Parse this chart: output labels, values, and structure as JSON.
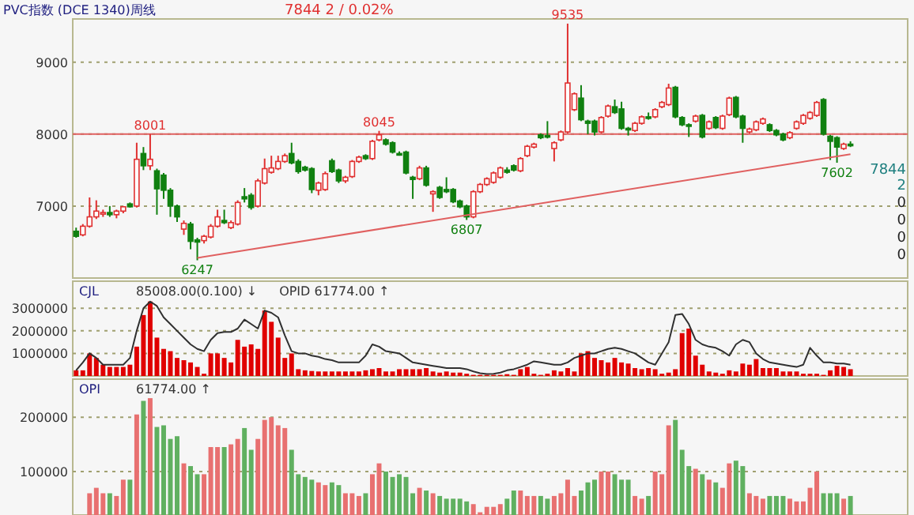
{
  "chart_data": [
    {
      "type": "candlestick",
      "title": "PVC指数 (DCE 1340)周线",
      "subtitle": "7844  2 / 0.02%",
      "tick_labels": "y",
      "grid": "y",
      "ylim": [
        6000,
        9600
      ],
      "yticks": [
        7000,
        8000,
        9000
      ],
      "categories": [
        null,
        null,
        null,
        null,
        null,
        null,
        null,
        null,
        null,
        null,
        null,
        null,
        null,
        null,
        null,
        null,
        null,
        null,
        null,
        null,
        null,
        null,
        null,
        null,
        null,
        null,
        null,
        null,
        null,
        null,
        null,
        null,
        null,
        null,
        null,
        null,
        null,
        null,
        null,
        null,
        null,
        null,
        null,
        null,
        null,
        null,
        null,
        null,
        null,
        null,
        null,
        null,
        null,
        null,
        null,
        null,
        null,
        null,
        null,
        null,
        null,
        null,
        null,
        null,
        null,
        null,
        null,
        null,
        null,
        null,
        null,
        null,
        null,
        null,
        null,
        null,
        null,
        null,
        null,
        null,
        null,
        null,
        null,
        null,
        null,
        null,
        null,
        null,
        null,
        null,
        null,
        null,
        null,
        null,
        null,
        null,
        null,
        null,
        null,
        null,
        null,
        null,
        null,
        null,
        null,
        null,
        null,
        null,
        null,
        null,
        null,
        null,
        null,
        null,
        null,
        null
      ],
      "ohlc": [
        [
          6650,
          6700,
          6560,
          6580
        ],
        [
          6600,
          6750,
          6580,
          6720
        ],
        [
          6720,
          7120,
          6700,
          6850
        ],
        [
          6850,
          7080,
          6820,
          6930
        ],
        [
          6900,
          6950,
          6850,
          6910
        ],
        [
          6910,
          7000,
          6850,
          6880
        ],
        [
          6880,
          6950,
          6830,
          6930
        ],
        [
          6930,
          7000,
          6900,
          6990
        ],
        [
          7030,
          7050,
          6980,
          6990
        ],
        [
          7000,
          7880,
          6980,
          7650
        ],
        [
          7730,
          7820,
          7500,
          7560
        ],
        [
          7560,
          8001,
          7500,
          7650
        ],
        [
          7490,
          7520,
          6880,
          7240
        ],
        [
          7430,
          7460,
          7100,
          7220
        ],
        [
          7220,
          7250,
          6850,
          7000
        ],
        [
          7000,
          7020,
          6780,
          6850
        ],
        [
          6680,
          6800,
          6600,
          6760
        ],
        [
          6750,
          6780,
          6400,
          6510
        ],
        [
          6530,
          6560,
          6247,
          6500
        ],
        [
          6520,
          6600,
          6480,
          6580
        ],
        [
          6570,
          6750,
          6550,
          6720
        ],
        [
          6720,
          6950,
          6700,
          6850
        ],
        [
          6800,
          6950,
          6750,
          6770
        ],
        [
          6700,
          6800,
          6680,
          6770
        ],
        [
          6750,
          7080,
          6730,
          7050
        ],
        [
          7130,
          7250,
          7050,
          7100
        ],
        [
          7150,
          7180,
          6950,
          6980
        ],
        [
          7000,
          7380,
          6980,
          7350
        ],
        [
          7320,
          7660,
          7300,
          7520
        ],
        [
          7470,
          7700,
          7450,
          7530
        ],
        [
          7520,
          7700,
          7500,
          7620
        ],
        [
          7620,
          7730,
          7600,
          7700
        ],
        [
          7730,
          7880,
          7580,
          7600
        ],
        [
          7620,
          7650,
          7450,
          7480
        ],
        [
          7540,
          7560,
          7480,
          7500
        ],
        [
          7520,
          7540,
          7180,
          7230
        ],
        [
          7220,
          7340,
          7150,
          7320
        ],
        [
          7230,
          7480,
          7210,
          7450
        ],
        [
          7630,
          7660,
          7460,
          7480
        ],
        [
          7500,
          7520,
          7320,
          7350
        ],
        [
          7350,
          7420,
          7320,
          7400
        ],
        [
          7410,
          7640,
          7390,
          7620
        ],
        [
          7620,
          7700,
          7600,
          7680
        ],
        [
          7700,
          7720,
          7640,
          7660
        ],
        [
          7660,
          7920,
          7640,
          7900
        ],
        [
          7920,
          8045,
          7900,
          7990
        ],
        [
          7920,
          7940,
          7840,
          7860
        ],
        [
          7880,
          7900,
          7730,
          7750
        ],
        [
          7730,
          7760,
          7700,
          7720
        ],
        [
          7750,
          7770,
          7440,
          7460
        ],
        [
          7400,
          7420,
          7100,
          7370
        ],
        [
          7380,
          7560,
          7360,
          7530
        ],
        [
          7530,
          7560,
          7270,
          7290
        ],
        [
          7170,
          7220,
          6920,
          7200
        ],
        [
          7260,
          7280,
          7100,
          7120
        ],
        [
          7230,
          7400,
          7180,
          7200
        ],
        [
          7230,
          7250,
          7040,
          7060
        ],
        [
          7070,
          7090,
          6970,
          6990
        ],
        [
          7000,
          7020,
          6807,
          6850
        ],
        [
          6850,
          7220,
          6830,
          7200
        ],
        [
          7200,
          7320,
          7180,
          7300
        ],
        [
          7300,
          7400,
          7280,
          7380
        ],
        [
          7330,
          7480,
          7310,
          7460
        ],
        [
          7400,
          7550,
          7380,
          7530
        ],
        [
          7500,
          7540,
          7450,
          7470
        ],
        [
          7560,
          7580,
          7480,
          7500
        ],
        [
          7490,
          7680,
          7470,
          7660
        ],
        [
          7700,
          7850,
          7680,
          7830
        ],
        [
          7820,
          7880,
          7800,
          7860
        ],
        [
          7990,
          8010,
          7930,
          7950
        ],
        [
          7980,
          8180,
          7940,
          7960
        ],
        [
          7800,
          7900,
          7620,
          7880
        ],
        [
          7920,
          8050,
          7900,
          8030
        ],
        [
          8030,
          9535,
          8010,
          8710
        ],
        [
          8340,
          8580,
          8320,
          8560
        ],
        [
          8500,
          8680,
          8180,
          8200
        ],
        [
          8180,
          8200,
          8000,
          8150
        ],
        [
          8180,
          8200,
          7980,
          8030
        ],
        [
          8030,
          8250,
          8010,
          8230
        ],
        [
          8250,
          8410,
          8230,
          8390
        ],
        [
          8380,
          8480,
          8280,
          8300
        ],
        [
          8350,
          8450,
          8060,
          8080
        ],
        [
          8080,
          8100,
          7980,
          8060
        ],
        [
          8050,
          8170,
          8030,
          8150
        ],
        [
          8150,
          8260,
          8130,
          8240
        ],
        [
          8240,
          8300,
          8200,
          8220
        ],
        [
          8240,
          8360,
          8220,
          8340
        ],
        [
          8380,
          8460,
          8360,
          8440
        ],
        [
          8410,
          8700,
          8390,
          8640
        ],
        [
          8650,
          8670,
          8220,
          8240
        ],
        [
          8230,
          8250,
          8110,
          8130
        ],
        [
          8130,
          8150,
          7960,
          8110
        ],
        [
          8180,
          8270,
          8160,
          8250
        ],
        [
          8260,
          8280,
          7940,
          7960
        ],
        [
          8080,
          8190,
          8060,
          8170
        ],
        [
          8230,
          8250,
          8070,
          8090
        ],
        [
          8080,
          8270,
          8060,
          8250
        ],
        [
          8270,
          8520,
          8250,
          8500
        ],
        [
          8510,
          8530,
          8220,
          8240
        ],
        [
          8250,
          8270,
          7880,
          8080
        ],
        [
          8030,
          8090,
          8010,
          8070
        ],
        [
          8060,
          8190,
          8040,
          8170
        ],
        [
          8150,
          8230,
          8130,
          8210
        ],
        [
          8130,
          8150,
          8030,
          8050
        ],
        [
          8050,
          8070,
          7970,
          7990
        ],
        [
          8000,
          8020,
          7900,
          7920
        ],
        [
          7950,
          8040,
          7930,
          8020
        ],
        [
          8080,
          8190,
          8060,
          8170
        ],
        [
          8150,
          8280,
          8130,
          8260
        ],
        [
          8220,
          8320,
          8200,
          8300
        ],
        [
          8260,
          8460,
          8240,
          8440
        ],
        [
          8480,
          8500,
          7980,
          8000
        ],
        [
          7970,
          7990,
          7640,
          7900
        ],
        [
          7950,
          7970,
          7602,
          7820
        ],
        [
          7800,
          7880,
          7780,
          7860
        ],
        [
          7860,
          7900,
          7820,
          7844
        ]
      ],
      "series": [
        {
          "type": "line",
          "values": [
            null,
            null,
            null,
            null,
            null,
            null,
            null,
            null,
            null,
            null,
            null,
            null,
            null,
            null,
            null,
            null,
            null,
            null,
            6280,
            null,
            null,
            null,
            null,
            null,
            null,
            null,
            null,
            null,
            null,
            null,
            null,
            null,
            null,
            null,
            null,
            null,
            null,
            null,
            null,
            null,
            null,
            null,
            null,
            null,
            null,
            null,
            null,
            null,
            null,
            null,
            null,
            null,
            null,
            null,
            null,
            null,
            null,
            null,
            null,
            null,
            null,
            null,
            null,
            null,
            null,
            null,
            null,
            null,
            null,
            null,
            null,
            null,
            null,
            null,
            null,
            null,
            null,
            null,
            null,
            null,
            null,
            null,
            null,
            null,
            null,
            null,
            null,
            null,
            null,
            null,
            null,
            null,
            null,
            null,
            null,
            null,
            null,
            null,
            null,
            null,
            null,
            null,
            null,
            null,
            null,
            null,
            null,
            null,
            null,
            null,
            null,
            null,
            null,
            null,
            null,
            7720
          ],
          "color": "#e06060"
        }
      ],
      "ref_lines": [
        {
          "axis": "y",
          "value": 8000,
          "color": "#e06060"
        }
      ],
      "annotations": [
        {
          "text": "8001",
          "y": 8001
        },
        {
          "text": "8045",
          "y": 8045
        },
        {
          "text": "9535",
          "y": 9535
        },
        {
          "text": "6247",
          "y": 6247
        },
        {
          "text": "6807",
          "y": 6807
        },
        {
          "text": "7602",
          "y": 7602
        },
        "7844",
        "2",
        "0",
        "0",
        "0",
        "0"
      ]
    },
    {
      "type": "bar",
      "title": "CJL",
      "tick_labels": "y",
      "grid": "y",
      "ylim": [
        0,
        4200000
      ],
      "yticks": [
        1000000,
        2000000,
        3000000
      ],
      "categories": [
        null,
        null,
        null,
        null,
        null,
        null,
        null,
        null,
        null,
        null,
        null,
        null,
        null,
        null,
        null,
        null,
        null,
        null,
        null,
        null,
        null,
        null,
        null,
        null,
        null,
        null,
        null,
        null,
        null,
        null,
        null,
        null,
        null,
        null,
        null,
        null,
        null,
        null,
        null,
        null,
        null,
        null,
        null,
        null,
        null,
        null,
        null,
        null,
        null,
        null,
        null,
        null,
        null,
        null,
        null,
        null,
        null,
        null,
        null,
        null,
        null,
        null,
        null,
        null,
        null,
        null,
        null,
        null,
        null,
        null,
        null,
        null,
        null,
        null,
        null,
        null,
        null,
        null,
        null,
        null,
        null,
        null,
        null,
        null,
        null,
        null,
        null,
        null,
        null,
        null,
        null,
        null,
        null,
        null,
        null,
        null,
        null,
        null,
        null,
        null,
        null,
        null,
        null,
        null,
        null,
        null,
        null,
        null,
        null,
        null,
        null,
        null,
        null,
        null,
        null,
        null
      ],
      "annotations": [
        "85008.00(0.100) ↓",
        "OPID  61774.00 ↑"
      ],
      "series": [
        {
          "type": "bar",
          "color": "#e00000",
          "values": [
            250000,
            250000,
            1000000,
            800000,
            500000,
            400000,
            400000,
            400000,
            500000,
            1300000,
            2700000,
            3300000,
            1700000,
            1200000,
            1100000,
            800000,
            700000,
            600000,
            400000,
            100000,
            1000000,
            1000000,
            800000,
            600000,
            1600000,
            1300000,
            1400000,
            1200000,
            2900000,
            2400000,
            1700000,
            800000,
            1000000,
            300000,
            250000,
            220000,
            200000,
            200000,
            200000,
            200000,
            200000,
            200000,
            200000,
            250000,
            300000,
            350000,
            200000,
            200000,
            300000,
            300000,
            300000,
            300000,
            350000,
            200000,
            150000,
            200000,
            150000,
            150000,
            100000,
            50000,
            50000,
            50000,
            50000,
            50000,
            80000,
            50000,
            300000,
            400000,
            100000,
            50000,
            100000,
            250000,
            200000,
            350000,
            200000,
            1000000,
            1100000,
            800000,
            700000,
            600000,
            800000,
            600000,
            550000,
            350000,
            300000,
            350000,
            300000,
            100000,
            150000,
            300000,
            1900000,
            2100000,
            900000,
            500000,
            200000,
            150000,
            100000,
            250000,
            200000,
            550000,
            500000,
            750000,
            350000,
            350000,
            350000,
            200000,
            200000,
            200000,
            100000,
            100000,
            100000,
            50000,
            250000,
            450000,
            400000,
            300000
          ]
        },
        {
          "type": "line",
          "color": "#303030",
          "values": [
            250000,
            600000,
            1000000,
            800000,
            500000,
            500000,
            500000,
            500000,
            800000,
            2000000,
            3000000,
            3300000,
            3100000,
            2600000,
            2300000,
            2000000,
            1700000,
            1400000,
            1200000,
            1100000,
            1600000,
            1900000,
            1950000,
            1950000,
            2100000,
            2500000,
            2300000,
            2100000,
            2900000,
            2800000,
            2600000,
            1800000,
            1100000,
            1000000,
            1000000,
            900000,
            850000,
            750000,
            700000,
            600000,
            600000,
            600000,
            600000,
            900000,
            1400000,
            1300000,
            1100000,
            1050000,
            1000000,
            800000,
            600000,
            550000,
            500000,
            450000,
            400000,
            350000,
            350000,
            350000,
            300000,
            200000,
            120000,
            90000,
            100000,
            150000,
            250000,
            300000,
            400000,
            500000,
            650000,
            600000,
            550000,
            500000,
            500000,
            600000,
            800000,
            900000,
            1000000,
            1000000,
            1100000,
            1200000,
            1250000,
            1200000,
            1100000,
            1000000,
            800000,
            600000,
            500000,
            1000000,
            1500000,
            2700000,
            2750000,
            2300000,
            1600000,
            1400000,
            1300000,
            1250000,
            1100000,
            900000,
            1400000,
            1600000,
            1500000,
            1000000,
            750000,
            600000,
            550000,
            500000,
            450000,
            400000,
            500000,
            1250000,
            900000,
            600000,
            600000,
            550000,
            550000,
            500000
          ]
        }
      ]
    },
    {
      "type": "bar",
      "title": "OPI",
      "tick_labels": "y",
      "grid": "y",
      "ylim": [
        20000,
        270000
      ],
      "yticks": [
        100000,
        200000
      ],
      "categories": [
        null,
        null,
        null,
        null,
        null,
        null,
        null,
        null,
        null,
        null,
        null,
        null,
        null,
        null,
        null,
        null,
        null,
        null,
        null,
        null,
        null,
        null,
        null,
        null,
        null,
        null,
        null,
        null,
        null,
        null,
        null,
        null,
        null,
        null,
        null,
        null,
        null,
        null,
        null,
        null,
        null,
        null,
        null,
        null,
        null,
        null,
        null,
        null,
        null,
        null,
        null,
        null,
        null,
        null,
        null,
        null,
        null,
        null,
        null,
        null,
        null,
        null,
        null,
        null,
        null,
        null,
        null,
        null,
        null,
        null,
        null,
        null,
        null,
        null,
        null,
        null,
        null,
        null,
        null,
        null,
        null,
        null,
        null,
        null,
        null,
        null,
        null,
        null,
        null,
        null,
        null,
        null,
        null,
        null,
        null,
        null,
        null,
        null,
        null,
        null,
        null,
        null,
        null,
        null,
        null,
        null,
        null,
        null,
        null,
        null,
        null,
        null,
        null,
        null,
        null,
        null
      ],
      "annotations": [
        "61774.00 ↑"
      ],
      "series": [
        {
          "type": "bar",
          "values": [
            null,
            null,
            60000,
            70000,
            60000,
            60000,
            55000,
            85000,
            85000,
            205000,
            230000,
            235000,
            182000,
            185000,
            160000,
            165000,
            115000,
            110000,
            95000,
            95000,
            145000,
            145000,
            145000,
            150000,
            160000,
            180000,
            140000,
            160000,
            195000,
            200000,
            185000,
            180000,
            140000,
            95000,
            90000,
            85000,
            80000,
            75000,
            80000,
            75000,
            60000,
            60000,
            55000,
            60000,
            95000,
            115000,
            100000,
            90000,
            95000,
            90000,
            60000,
            70000,
            65000,
            60000,
            55000,
            50000,
            50000,
            50000,
            45000,
            40000,
            25000,
            35000,
            35000,
            40000,
            50000,
            65000,
            65000,
            55000,
            55000,
            55000,
            50000,
            55000,
            60000,
            85000,
            55000,
            65000,
            80000,
            85000,
            100000,
            100000,
            95000,
            85000,
            85000,
            55000,
            50000,
            55000,
            100000,
            95000,
            185000,
            195000,
            140000,
            110000,
            105000,
            95000,
            85000,
            80000,
            70000,
            115000,
            120000,
            110000,
            60000,
            55000,
            50000,
            55000,
            55000,
            55000,
            50000,
            45000,
            45000,
            70000,
            100000,
            60000,
            60000,
            60000,
            50000,
            55000
          ],
          "colors": [
            null,
            null,
            "#e87070",
            "#e87070",
            "#e87070",
            "#60b060",
            "#e87070",
            "#e87070",
            "#60b060",
            "#e87070",
            "#60b060",
            "#e87070",
            "#60b060",
            "#60b060",
            "#60b060",
            "#60b060",
            "#e87070",
            "#60b060",
            "#60b060",
            "#e87070",
            "#e87070",
            "#e87070",
            "#60b060",
            "#e87070",
            "#e87070",
            "#60b060",
            "#60b060",
            "#e87070",
            "#e87070",
            "#e87070",
            "#e87070",
            "#e87070",
            "#60b060",
            "#60b060",
            "#60b060",
            "#60b060",
            "#e87070",
            "#e87070",
            "#60b060",
            "#60b060",
            "#e87070",
            "#e87070",
            "#e87070",
            "#60b060",
            "#e87070",
            "#e87070",
            "#60b060",
            "#60b060",
            "#60b060",
            "#60b060",
            "#60b060",
            "#e87070",
            "#60b060",
            "#e87070",
            "#60b060",
            "#60b060",
            "#60b060",
            "#60b060",
            "#60b060",
            "#e87070",
            "#e87070",
            "#e87070",
            "#e87070",
            "#e87070",
            "#60b060",
            "#60b060",
            "#e87070",
            "#e87070",
            "#e87070",
            "#60b060",
            "#60b060",
            "#e87070",
            "#e87070",
            "#e87070",
            "#e87070",
            "#60b060",
            "#60b060",
            "#60b060",
            "#e87070",
            "#e87070",
            "#60b060",
            "#60b060",
            "#60b060",
            "#e87070",
            "#e87070",
            "#60b060",
            "#e87070",
            "#e87070",
            "#e87070",
            "#60b060",
            "#60b060",
            "#60b060",
            "#e87070",
            "#60b060",
            "#e87070",
            "#60b060",
            "#e87070",
            "#e87070",
            "#60b060",
            "#60b060",
            "#e87070",
            "#e87070",
            "#e87070",
            "#60b060",
            "#60b060",
            "#60b060",
            "#e87070",
            "#e87070",
            "#e87070",
            "#e87070",
            "#e87070",
            "#60b060",
            "#60b060",
            "#60b060",
            "#e87070",
            "#60b060"
          ]
        }
      ]
    }
  ]
}
